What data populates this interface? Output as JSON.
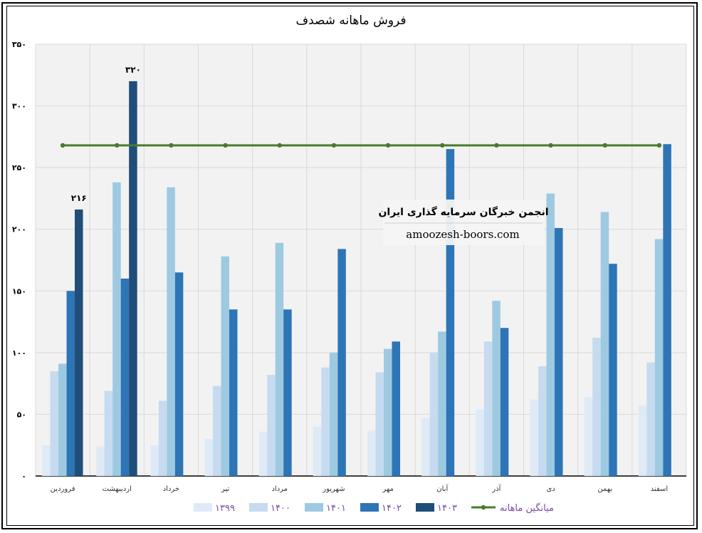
{
  "watermark": {
    "title": "انجمن خبرگان سرمایه گذاری ایران",
    "url": "amoozesh-boors.com"
  },
  "chart_data": {
    "type": "bar",
    "title": "فروش ماهانه شصدف",
    "xlabel": "",
    "ylabel": "",
    "ylim": [
      0,
      350
    ],
    "yticks": [
      {
        "value": 0,
        "label": "۰"
      },
      {
        "value": 50,
        "label": "۵۰"
      },
      {
        "value": 100,
        "label": "۱۰۰"
      },
      {
        "value": 150,
        "label": "۱۵۰"
      },
      {
        "value": 200,
        "label": "۲۰۰"
      },
      {
        "value": 250,
        "label": "۲۵۰"
      },
      {
        "value": 300,
        "label": "۳۰۰"
      },
      {
        "value": 350,
        "label": "۳۵۰"
      }
    ],
    "grid": true,
    "legend_position": "bottom",
    "categories": [
      "فروردین",
      "اردیبهشت",
      "خرداد",
      "تیر",
      "مرداد",
      "شهریور",
      "مهر",
      "آبان",
      "آذر",
      "دی",
      "بهمن",
      "اسفند"
    ],
    "series": [
      {
        "name": "۱۳۹۹",
        "color": "#deebf7",
        "values": [
          25,
          24,
          25,
          30,
          36,
          40,
          37,
          47,
          54,
          62,
          64,
          57
        ]
      },
      {
        "name": "۱۴۰۰",
        "color": "#c6dbef",
        "values": [
          85,
          69,
          61,
          73,
          82,
          88,
          84,
          100,
          109,
          89,
          112,
          92
        ]
      },
      {
        "name": "۱۴۰۱",
        "color": "#9ecae1",
        "values": [
          91,
          238,
          234,
          178,
          189,
          100,
          103,
          117,
          142,
          229,
          214,
          192
        ]
      },
      {
        "name": "۱۴۰۲",
        "color": "#2e75b6",
        "values": [
          150,
          160,
          165,
          135,
          135,
          184,
          109,
          265,
          120,
          201,
          172,
          269
        ]
      },
      {
        "name": "۱۴۰۳",
        "color": "#1f4e79",
        "values": [
          216,
          320,
          null,
          null,
          null,
          null,
          null,
          null,
          null,
          null,
          null,
          null
        ]
      }
    ],
    "line_series": {
      "name": "میانگین ماهانه",
      "color": "#4a7a2e",
      "values": [
        268,
        268,
        268,
        268,
        268,
        268,
        268,
        268,
        268,
        268,
        268,
        268
      ]
    },
    "data_labels": [
      {
        "series": "۱۴۰۳",
        "category": "فروردین",
        "value": 216,
        "text": "۲۱۶"
      },
      {
        "series": "۱۴۰۳",
        "category": "اردیبهشت",
        "value": 320,
        "text": "۳۲۰"
      }
    ]
  }
}
